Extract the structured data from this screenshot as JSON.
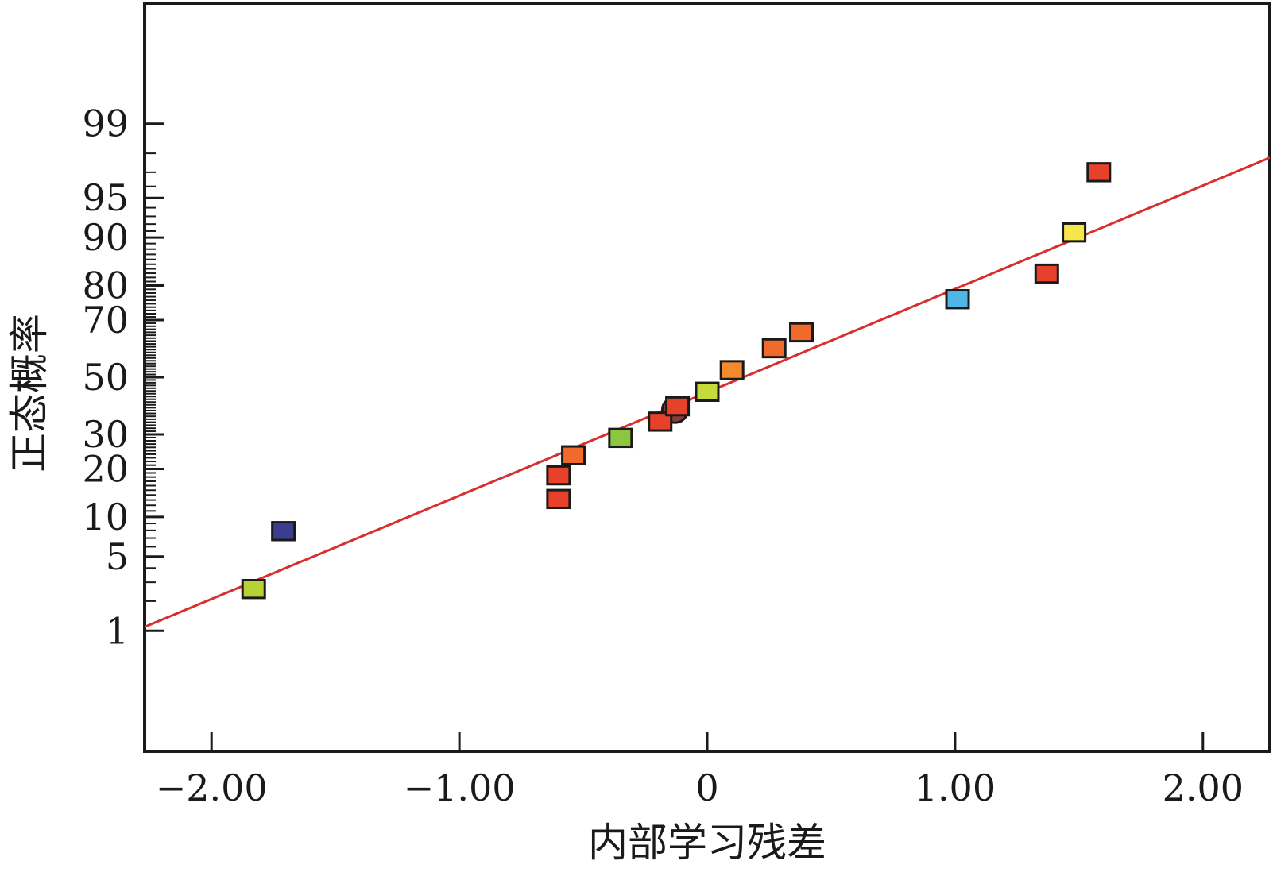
{
  "chart_data": {
    "type": "scatter",
    "title": "",
    "xlabel": "内部学习残差",
    "ylabel": "正态概率",
    "x_scale": "linear",
    "y_scale": "normal-probability",
    "xlim": [
      -2.27,
      2.27
    ],
    "ylim": [
      0.03,
      99.97
    ],
    "x_ticks": [
      {
        "value": -2,
        "label": "−2.00"
      },
      {
        "value": -1,
        "label": "−1.00"
      },
      {
        "value": 0,
        "label": "0"
      },
      {
        "value": 1,
        "label": "1.00"
      },
      {
        "value": 2,
        "label": "2.00"
      }
    ],
    "y_ticks": [
      {
        "value": 1,
        "label": "1"
      },
      {
        "value": 5,
        "label": "5"
      },
      {
        "value": 10,
        "label": "10"
      },
      {
        "value": 20,
        "label": "20"
      },
      {
        "value": 30,
        "label": "30"
      },
      {
        "value": 50,
        "label": "50"
      },
      {
        "value": 70,
        "label": "70"
      },
      {
        "value": 80,
        "label": "80"
      },
      {
        "value": 90,
        "label": "90"
      },
      {
        "value": 95,
        "label": "95"
      },
      {
        "value": 99,
        "label": "99"
      }
    ],
    "grid": false,
    "legend": "none",
    "fit_line": {
      "color": "#d62f2f",
      "points": [
        [
          -2.27,
          1.1
        ],
        [
          2.27,
          97.8
        ]
      ]
    },
    "points": [
      {
        "x": -1.83,
        "y": 2.6,
        "color": "#b5d334"
      },
      {
        "x": -1.71,
        "y": 7.9,
        "color": "#3b3e8f"
      },
      {
        "x": -0.6,
        "y": 13.2,
        "color": "#e8412b"
      },
      {
        "x": -0.6,
        "y": 18.4,
        "color": "#e8412b"
      },
      {
        "x": -0.54,
        "y": 23.7,
        "color": "#f06a2c"
      },
      {
        "x": -0.35,
        "y": 28.9,
        "color": "#8cc63f"
      },
      {
        "x": -0.19,
        "y": 34.2,
        "color": "#e8412b"
      },
      {
        "x": -0.12,
        "y": 39.5,
        "color": "#e8412b"
      },
      {
        "x": 0.0,
        "y": 44.7,
        "color": "#c3dc3b"
      },
      {
        "x": 0.1,
        "y": 52.6,
        "color": "#f58a2c"
      },
      {
        "x": 0.27,
        "y": 60.5,
        "color": "#f06a2c"
      },
      {
        "x": 0.38,
        "y": 66.0,
        "color": "#f06a2c"
      },
      {
        "x": 1.01,
        "y": 76.3,
        "color": "#4fb6e6"
      },
      {
        "x": 1.37,
        "y": 82.9,
        "color": "#e8412b"
      },
      {
        "x": 1.48,
        "y": 90.8,
        "color": "#f5e64a"
      },
      {
        "x": 1.58,
        "y": 97.0,
        "color": "#e8412b"
      }
    ],
    "highlight": {
      "x": -0.13,
      "y": 38.2,
      "color": "#8a3a3a"
    }
  }
}
